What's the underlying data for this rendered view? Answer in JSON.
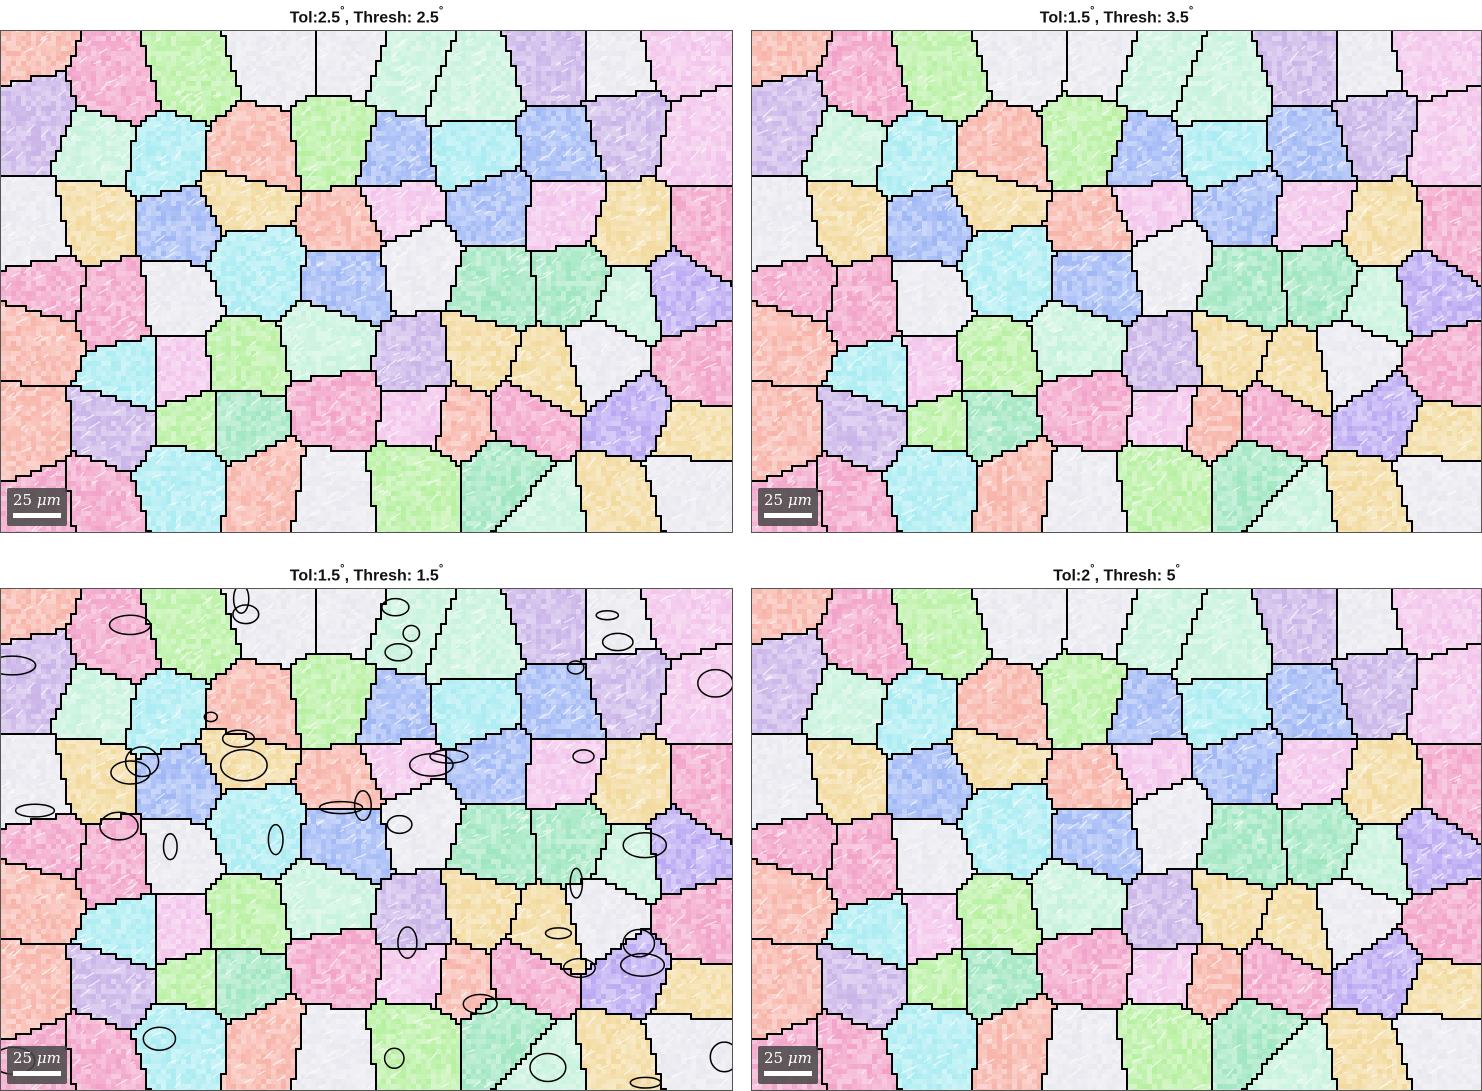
{
  "panels": [
    {
      "title_prefix": "Tol:",
      "tol": "2.5",
      "thresh_label": ", Thresh: ",
      "thresh": "2.5",
      "degree": "°",
      "density": "low"
    },
    {
      "title_prefix": "Tol:",
      "tol": "1.5",
      "thresh_label": ", Thresh: ",
      "thresh": "3.5",
      "degree": "°",
      "density": "low"
    },
    {
      "title_prefix": "Tol:",
      "tol": "1.5",
      "thresh_label": ", Thresh: ",
      "thresh": "1.5",
      "degree": "°",
      "density": "high"
    },
    {
      "title_prefix": "Tol:",
      "tol": "2",
      "thresh_label": ", Thresh: ",
      "thresh": "5",
      "degree": "°",
      "density": "very-low"
    }
  ],
  "scalebar": {
    "value": "25",
    "unit": "μm"
  },
  "colors": {
    "grain_palette": [
      "#b9a6f2",
      "#f2a2c8",
      "#9ee6c0",
      "#a9ecf2",
      "#f2d99c",
      "#c9b3e8",
      "#f7b3a8",
      "#b7f0a1",
      "#e8e8ef",
      "#9fb7f5",
      "#f2c2ea",
      "#c6f2dc"
    ],
    "boundary": "#000000"
  }
}
